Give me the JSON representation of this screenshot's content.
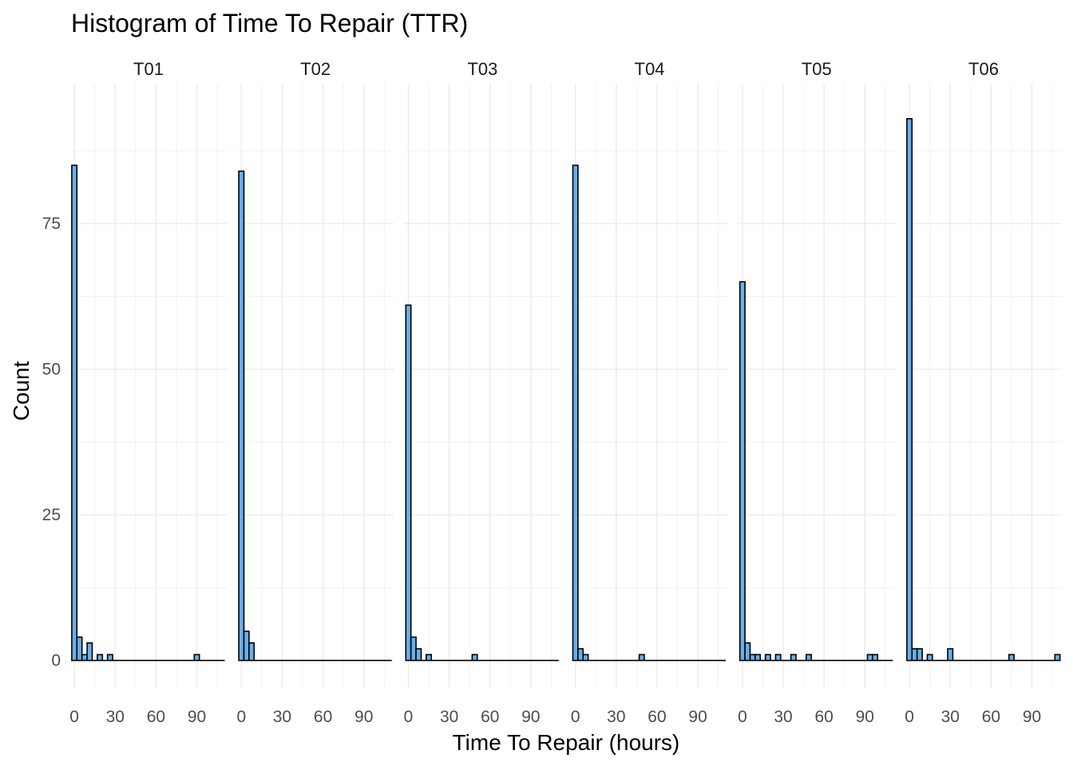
{
  "chart_data": {
    "type": "bar",
    "title": "Histogram of Time To Repair (TTR)",
    "xlabel": "Time To Repair (hours)",
    "ylabel": "Count",
    "xlim": [
      -3,
      112
    ],
    "ylim": [
      -4.7,
      99
    ],
    "x_ticks": [
      0,
      30,
      60,
      90
    ],
    "y_ticks": [
      0,
      25,
      50,
      75
    ],
    "binwidth": 3.75,
    "grid": true,
    "bar_fill": "#6aaee8",
    "bar_stroke": "#000000",
    "panels": [
      {
        "name": "T01",
        "bins": [
          [
            0,
            85
          ],
          [
            3.75,
            4
          ],
          [
            7.5,
            1
          ],
          [
            11.25,
            3
          ],
          [
            18.75,
            1
          ],
          [
            26.25,
            1
          ],
          [
            90,
            1
          ]
        ]
      },
      {
        "name": "T02",
        "bins": [
          [
            0,
            84
          ],
          [
            3.75,
            5
          ],
          [
            7.5,
            3
          ]
        ]
      },
      {
        "name": "T03",
        "bins": [
          [
            0,
            61
          ],
          [
            3.75,
            4
          ],
          [
            7.5,
            2
          ],
          [
            15,
            1
          ],
          [
            48.75,
            1
          ]
        ]
      },
      {
        "name": "T04",
        "bins": [
          [
            0,
            85
          ],
          [
            3.75,
            2
          ],
          [
            7.5,
            1
          ],
          [
            48.75,
            1
          ]
        ]
      },
      {
        "name": "T05",
        "bins": [
          [
            0,
            65
          ],
          [
            3.75,
            3
          ],
          [
            7.5,
            1
          ],
          [
            11.25,
            1
          ],
          [
            18.75,
            1
          ],
          [
            26.25,
            1
          ],
          [
            37.5,
            1
          ],
          [
            48.75,
            1
          ],
          [
            93.75,
            1
          ],
          [
            97.5,
            1
          ]
        ]
      },
      {
        "name": "T06",
        "bins": [
          [
            0,
            93
          ],
          [
            3.75,
            2
          ],
          [
            7.5,
            2
          ],
          [
            15,
            1
          ],
          [
            30,
            2
          ],
          [
            75,
            1
          ],
          [
            108.75,
            1
          ]
        ]
      }
    ]
  }
}
